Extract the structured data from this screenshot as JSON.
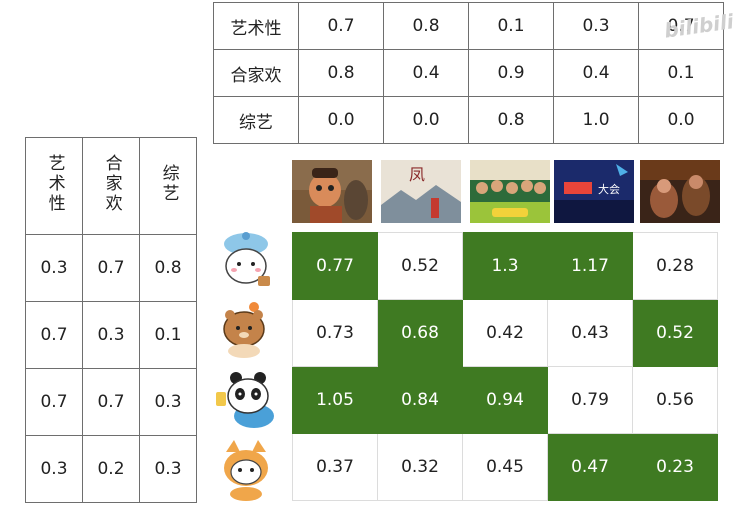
{
  "movie_features": {
    "rows": [
      {
        "label": "艺术性",
        "values": [
          "0.7",
          "0.8",
          "0.1",
          "0.3",
          "0.7"
        ]
      },
      {
        "label": "合家欢",
        "values": [
          "0.8",
          "0.4",
          "0.9",
          "0.4",
          "0.1"
        ]
      },
      {
        "label": "综艺",
        "values": [
          "0.0",
          "0.0",
          "0.8",
          "1.0",
          "0.0"
        ]
      }
    ]
  },
  "user_prefs": {
    "headers": [
      "艺术性",
      "合家欢",
      "综艺"
    ],
    "rows": [
      [
        "0.3",
        "0.7",
        "0.8"
      ],
      [
        "0.7",
        "0.3",
        "0.1"
      ],
      [
        "0.7",
        "0.7",
        "0.3"
      ],
      [
        "0.3",
        "0.2",
        "0.3"
      ]
    ]
  },
  "scores": {
    "rows": [
      [
        "0.77",
        "0.52",
        "1.3",
        "1.17",
        "0.28"
      ],
      [
        "0.73",
        "0.68",
        "0.42",
        "0.43",
        "0.52"
      ],
      [
        "1.05",
        "0.84",
        "0.94",
        "0.79",
        "0.56"
      ],
      [
        "0.37",
        "0.32",
        "0.45",
        "0.47",
        "0.23"
      ]
    ],
    "highlight": [
      [
        true,
        false,
        true,
        true,
        false
      ],
      [
        false,
        true,
        false,
        false,
        true
      ],
      [
        true,
        true,
        true,
        false,
        false
      ],
      [
        false,
        false,
        false,
        true,
        true
      ]
    ],
    "highlight_color": "#3f7a22"
  },
  "posters": [
    {
      "icon": "animated-character-poster",
      "text": ""
    },
    {
      "icon": "landscape-film-poster",
      "text": "凤"
    },
    {
      "icon": "variety-show-group-poster",
      "text": ""
    },
    {
      "icon": "variety-show-stage-poster",
      "text": "大会"
    },
    {
      "icon": "drama-film-poster",
      "text": ""
    }
  ],
  "avatars": [
    {
      "icon": "bear-with-blue-hat-icon"
    },
    {
      "icon": "brown-bear-with-flower-icon"
    },
    {
      "icon": "panda-with-drink-icon"
    },
    {
      "icon": "bear-in-cat-costume-icon"
    }
  ],
  "watermark": "bilibili"
}
